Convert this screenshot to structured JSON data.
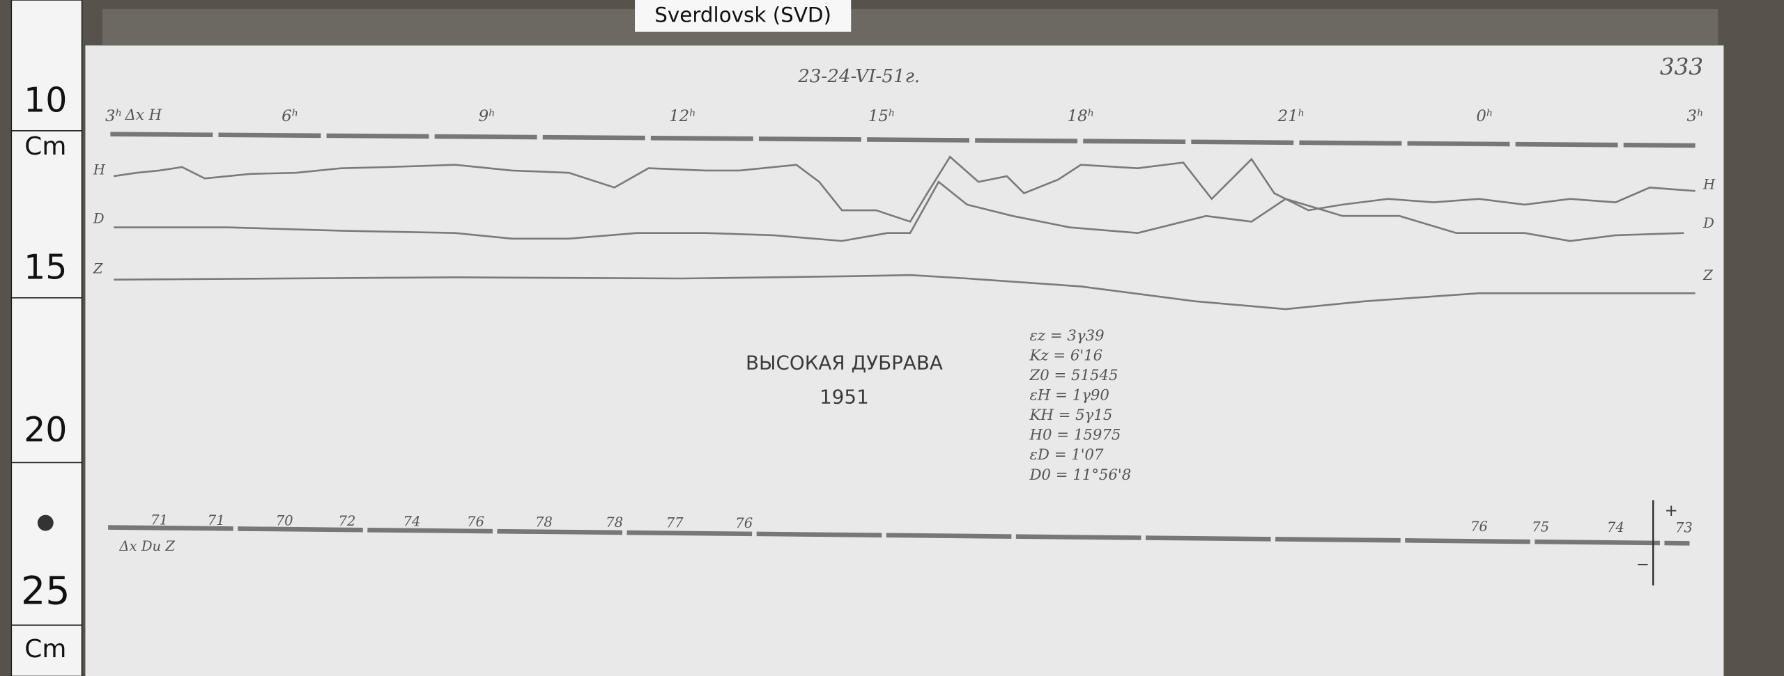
{
  "header": {
    "station_label": "Sverdlovsk (SVD)",
    "handwritten_date": "23-24-VI-51г.",
    "sheet_number": "333"
  },
  "ruler": {
    "marks": [
      "10",
      "15",
      "20",
      "25"
    ],
    "units": [
      "Cm",
      "Cm"
    ]
  },
  "hour_marks": [
    "3ʰ",
    "6ʰ",
    "9ʰ",
    "12ʰ",
    "15ʰ",
    "18ʰ",
    "21ʰ",
    "0ʰ",
    "3ʰ"
  ],
  "sensitivity_label": "Δx H",
  "trace_labels": {
    "left": [
      "H",
      "D",
      "Z"
    ],
    "right": [
      "H",
      "D",
      "Z"
    ]
  },
  "title": {
    "station": "ВЫСОКАЯ ДУБРАВА",
    "year": "1951"
  },
  "constants": [
    "εz = 3γ39",
    "Kz = 6'16",
    "Z0 = 51545",
    "εH = 1γ90",
    "KH = 5γ15",
    "H0 = 15975",
    "εD = 1'07",
    "D0 = 11°56'8"
  ],
  "baseline": {
    "values": [
      71,
      71,
      70,
      72,
      74,
      76,
      78,
      78,
      77,
      76,
      76,
      75,
      74,
      73
    ],
    "label": "Δx Dи Z"
  },
  "scale_arrow": {
    "plus": "+",
    "minus": "−"
  }
}
